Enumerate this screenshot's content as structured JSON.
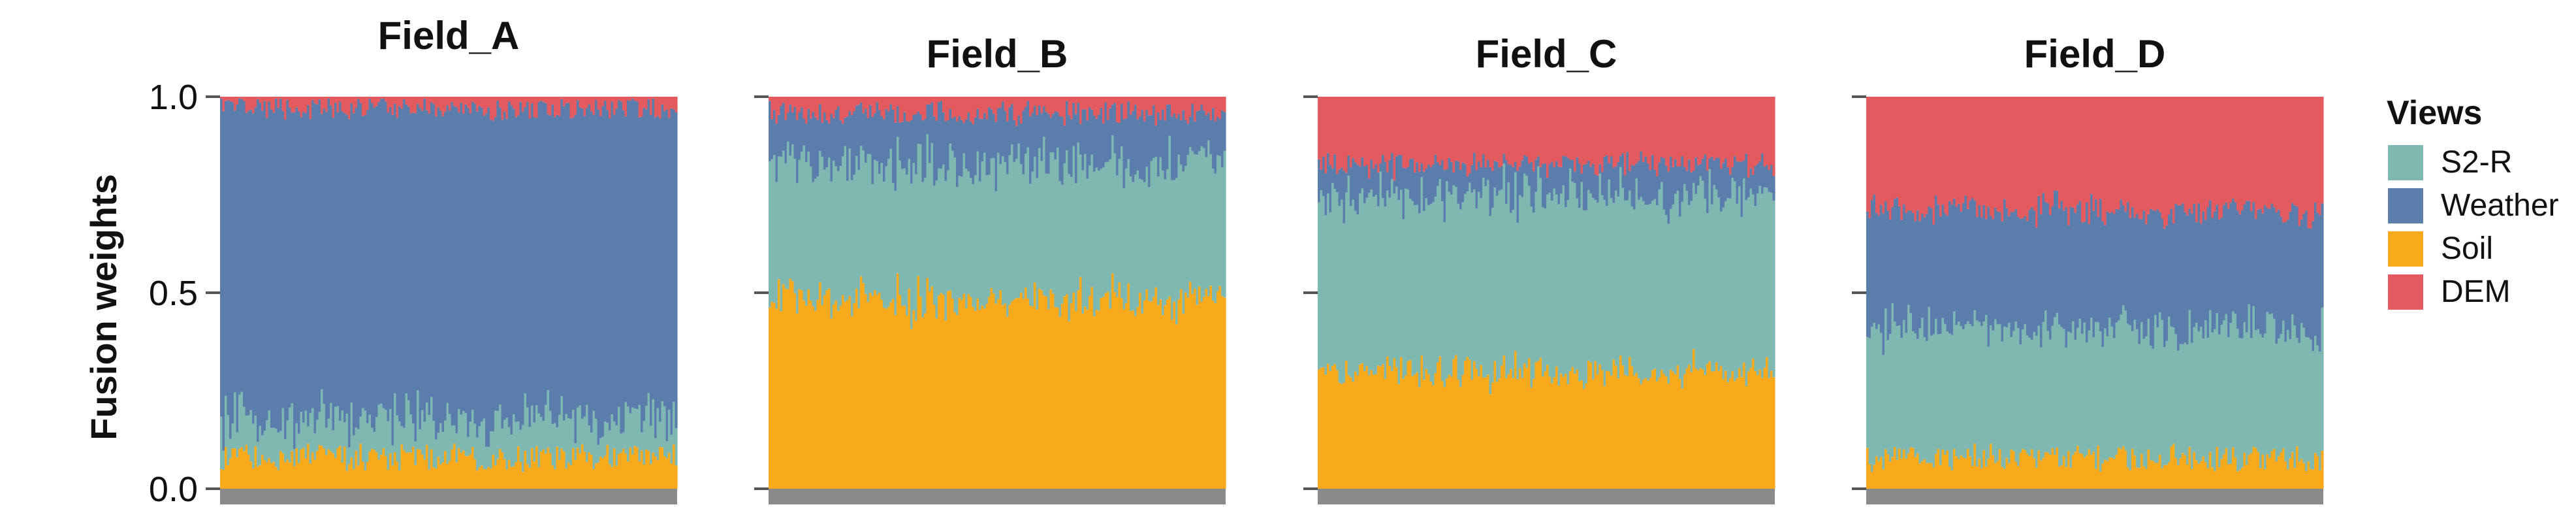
{
  "chart_data": {
    "type": "stacked-bar",
    "ylabel": "Fusion weights",
    "ylim": [
      0.0,
      1.0
    ],
    "yticks": [
      "0.0",
      "0.5",
      "1.0"
    ],
    "legend": {
      "title": "Views",
      "position": "right",
      "entries": [
        "S2-R",
        "Weather",
        "Soil",
        "DEM"
      ]
    },
    "colors": {
      "S2-R": "#7fb8b0",
      "Weather": "#5b7dab",
      "Soil": "#f8aa1c",
      "DEM": "#e35b5f",
      "baseline": "#8a8a8a",
      "axis": "#555555"
    },
    "bar_count_per_panel": 200,
    "panels": [
      {
        "title": "Field_A",
        "mean_weights": {
          "Soil": 0.08,
          "S2-R": 0.1,
          "Weather": 0.79,
          "DEM": 0.03
        }
      },
      {
        "title": "Field_B",
        "mean_weights": {
          "Soil": 0.48,
          "S2-R": 0.35,
          "Weather": 0.13,
          "DEM": 0.04
        }
      },
      {
        "title": "Field_C",
        "mean_weights": {
          "Soil": 0.3,
          "S2-R": 0.45,
          "Weather": 0.08,
          "DEM": 0.17
        }
      },
      {
        "title": "Field_D",
        "mean_weights": {
          "Soil": 0.08,
          "S2-R": 0.33,
          "Weather": 0.3,
          "DEM": 0.29
        }
      }
    ]
  }
}
